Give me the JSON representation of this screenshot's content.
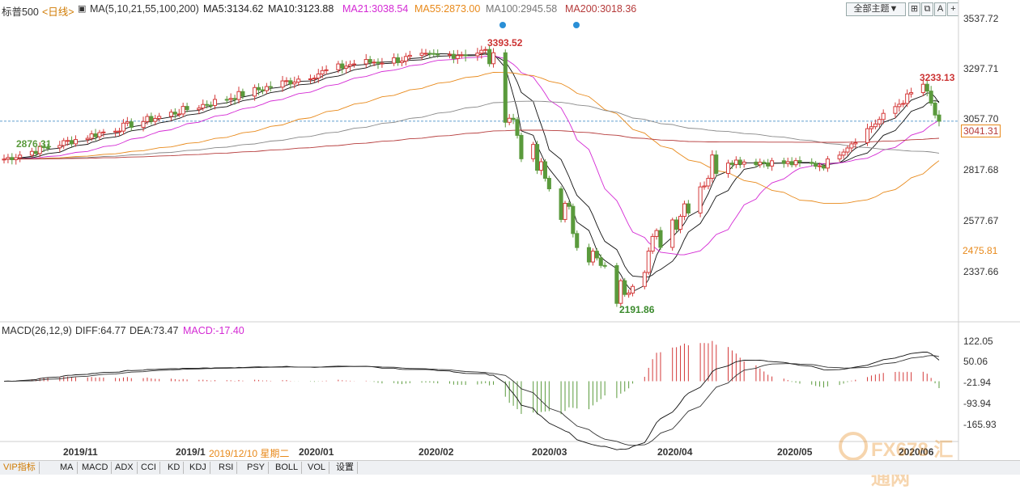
{
  "header": {
    "title": "标普500",
    "period": "<日线>",
    "ma_label": "MA(5,10,21,55,100,200)",
    "ma_values": [
      {
        "text": "MA5:3134.62",
        "color": "#222222"
      },
      {
        "text": "MA10:3123.88",
        "color": "#222222"
      },
      {
        "text": "MA21:3038.54",
        "color": "#d42ad4"
      },
      {
        "text": "MA55:2873.00",
        "color": "#e8891a"
      },
      {
        "text": "MA100:2945.58",
        "color": "#777777"
      },
      {
        "text": "MA200:3018.36",
        "color": "#b53a3a"
      }
    ],
    "theme_select": "全部主题▼",
    "icons": [
      "plus-box-icon",
      "restore-icon",
      "text-icon",
      "plus-icon",
      "minus-icon"
    ]
  },
  "price_axis": [
    "3537.72",
    "3297.71",
    "3057.70",
    "2817.68",
    "2577.67",
    "2337.66"
  ],
  "price_tags": {
    "current": "3041.31",
    "low": "2475.81"
  },
  "annotations": {
    "high1": "3393.52",
    "high2": "3233.13",
    "low": "2191.86",
    "left_start": "2876.31"
  },
  "macd": {
    "label": "MACD(26,12,9)",
    "diff": "DIFF:64.77",
    "dea": "DEA:73.47",
    "macd": "MACD:-17.40",
    "axis": [
      "122.05",
      "50.06",
      "-21.94",
      "-93.94",
      "-165.93"
    ]
  },
  "dates": [
    "2019/11",
    "2019/1",
    "2019/12/10 星期二",
    "2020/01",
    "2020/02",
    "2020/03",
    "2020/04",
    "2020/05",
    "2020/06"
  ],
  "tabs": [
    "VIP指标",
    "MA",
    "MACD",
    "ADX",
    "CCI",
    "KD",
    "KDJ",
    "RSI",
    "PSY",
    "BOLL",
    "VOL",
    "设置"
  ],
  "watermark": "FX678 汇通网",
  "colors": {
    "up": "#d43a3a",
    "down": "#5a9a3c",
    "ma5": "#111111",
    "ma10": "#111111",
    "ma21": "#d42ad4",
    "ma55": "#e8891a",
    "ma100": "#888888",
    "ma200": "#b53a3a"
  },
  "chart_data": {
    "type": "candlestick",
    "title": "标普500 日线",
    "y_range": [
      2190,
      3560
    ],
    "anchors": [
      {
        "date": "2019/10/21",
        "close": 2880
      },
      {
        "date": "2019/12/10",
        "close": 3135
      },
      {
        "date": "2020/01/17",
        "close": 3330
      },
      {
        "date": "2020/02/19",
        "close": 3386
      },
      {
        "date": "2020/02/28",
        "close": 2954
      },
      {
        "date": "2020/03/23",
        "close": 2237
      },
      {
        "date": "2020/04/17",
        "close": 2875
      },
      {
        "date": "2020/05/14",
        "close": 2852
      },
      {
        "date": "2020/06/08",
        "close": 3232
      },
      {
        "date": "2020/06/12",
        "close": 3041
      }
    ],
    "macd_range": [
      -200,
      140
    ]
  }
}
